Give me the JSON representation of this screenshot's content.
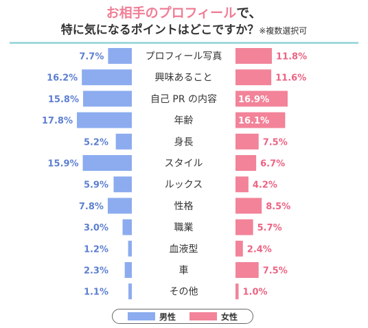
{
  "header": {
    "title_highlight": "お相手のプロフィール",
    "title_rest": "で、",
    "subtitle": "特に気になるポイントはどこですか？",
    "note": "※複数選択可"
  },
  "colors": {
    "male": "#8cacef",
    "female": "#f28399",
    "male_label": "#5d7fd1",
    "female_label": "#ec6483",
    "divider": "#9ed9dc"
  },
  "legend": {
    "male": "男性",
    "female": "女性"
  },
  "chart_data": {
    "type": "bar",
    "orientation": "horizontal-butterfly",
    "categories": [
      "プロフィール写真",
      "興味あること",
      "自己 PR の内容",
      "年齢",
      "身長",
      "スタイル",
      "ルックス",
      "性格",
      "職業",
      "血液型",
      "車",
      "その他"
    ],
    "series": [
      {
        "name": "男性",
        "values": [
          7.7,
          16.2,
          15.8,
          17.8,
          5.2,
          15.9,
          5.9,
          7.8,
          3.0,
          1.2,
          2.3,
          1.1
        ],
        "labels": [
          "7.7%",
          "16.2%",
          "15.8%",
          "17.8%",
          "5.2%",
          "15.9%",
          "5.9%",
          "7.8%",
          "3.0%",
          "1.2%",
          "2.3%",
          "1.1%"
        ]
      },
      {
        "name": "女性",
        "values": [
          11.8,
          11.6,
          16.9,
          16.1,
          7.5,
          6.7,
          4.2,
          8.5,
          5.7,
          2.4,
          7.5,
          1.0
        ],
        "labels": [
          "11.8%",
          "11.6%",
          "16.9%",
          "16.1%",
          "7.5%",
          "6.7%",
          "4.2%",
          "8.5%",
          "5.7%",
          "2.4%",
          "7.5%",
          "1.0%"
        ]
      }
    ],
    "value_unit": "%"
  }
}
